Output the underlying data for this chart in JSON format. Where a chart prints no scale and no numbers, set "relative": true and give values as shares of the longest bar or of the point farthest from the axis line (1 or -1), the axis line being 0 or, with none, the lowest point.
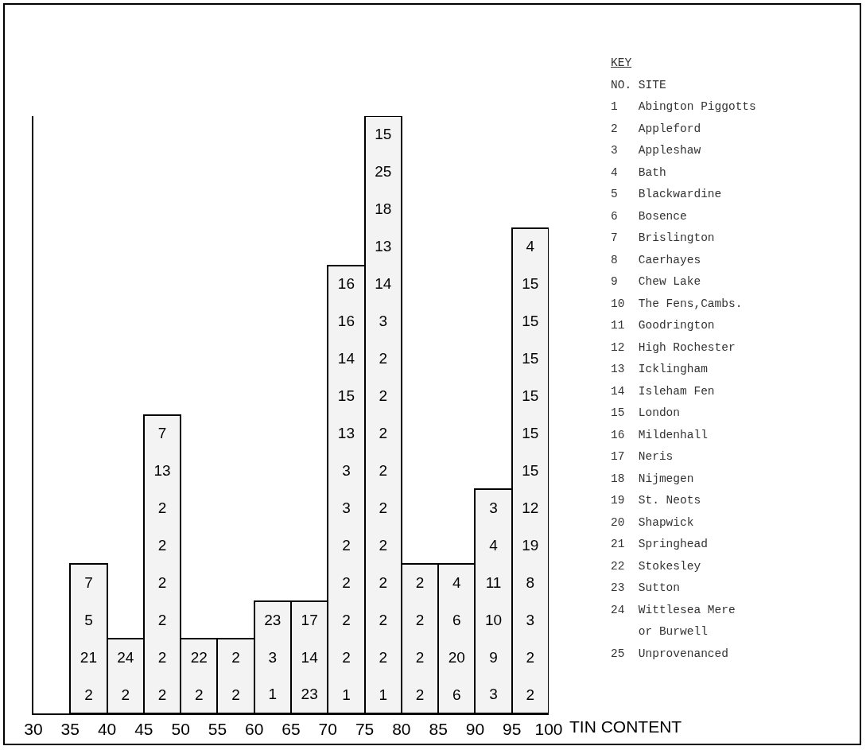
{
  "chart_data": {
    "type": "bar",
    "relative": true,
    "xlabel": "TIN CONTENT",
    "color": "#f3f3f3",
    "x": [
      37.5,
      42.5,
      47.5,
      52.5,
      57.5,
      62.5,
      67.5,
      72.5,
      77.5,
      82.5,
      87.5,
      92.5,
      97.5
    ],
    "values": [
      0.25,
      0.125,
      0.5,
      0.125,
      0.125,
      0.1875,
      0.1875,
      0.75,
      1,
      0.25,
      0.25,
      0.375,
      0.8125
    ],
    "xlim": [
      30,
      100
    ],
    "xticks": [
      30,
      35,
      40,
      45,
      50,
      55,
      60,
      65,
      70,
      75,
      80,
      85,
      90,
      95,
      100
    ],
    "annotations": [
      "7\n5\n21\n2",
      "24\n2",
      "7\n13\n2\n2\n2\n2\n2\n2",
      "22\n2",
      "2\n2",
      "23\n3\n1",
      "17\n14\n23",
      "16\n16\n14\n15\n13\n3\n3\n2\n2\n2\n2\n1",
      "15\n25\n18\n13\n14\n3\n2\n2\n2\n2\n2\n2\n2\n2\n2\n1",
      "2\n2\n2\n2",
      "4\n6\n20\n6",
      "3\n4\n11\n10\n9\n3",
      "4\n15\n15\n15\n15\n15\n15\n12\n19\n8\n3\n2\n2",
      "KEY",
      "NO.\tSITE",
      "1\tAbington Piggotts",
      "2\tAppleford",
      "3\tAppleshaw",
      "4\tBath",
      "5\tBlackwardine",
      "6\tBosence",
      "7\tBrislington",
      "8\tCaerhayes",
      "9\tChew Lake",
      "10\tThe Fens,Cambs.",
      "11\tGoodrington",
      "12\tHigh Rochester",
      "13\tIcklingham",
      "14\tIsleham Fen",
      "15\tLondon",
      "16\tMildenhall",
      "17\tNeris",
      "18\tNijmegen",
      "19\tSt. Neots",
      "20\tShapwick",
      "21\tSpringhead",
      "22\tStokesley",
      "23\tSutton",
      "24\tWittlesea Mere\n\tor Burwell",
      "25\tUnprovenanced"
    ]
  }
}
